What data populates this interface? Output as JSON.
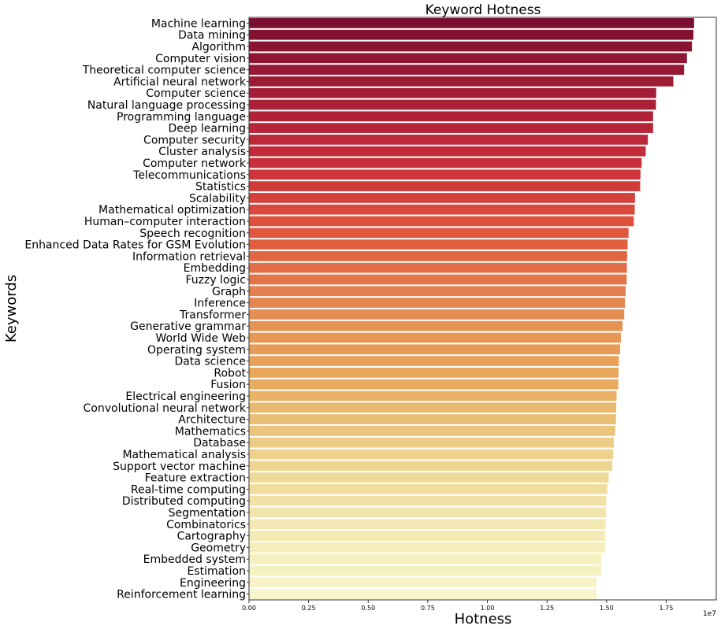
{
  "chart_data": {
    "type": "bar",
    "orientation": "horizontal",
    "title": "Keyword Hotness",
    "xlabel": "Hotness",
    "ylabel": "Keywords",
    "x_scale_label": "1e7",
    "xlim": [
      0,
      1.96
    ],
    "x_multiplier": 10000000,
    "xticks": [
      "0.00",
      "0.25",
      "0.50",
      "0.75",
      "1.00",
      "1.25",
      "1.50",
      "1.75"
    ],
    "grid": false,
    "palette": [
      "#7a1030",
      "#a51d36",
      "#c9303a",
      "#e05a3e",
      "#e48a52",
      "#e8a95c",
      "#edd08a",
      "#f3e8b0",
      "#f8f5cc"
    ],
    "categories": [
      "Machine learning",
      "Data mining",
      "Algorithm",
      "Computer vision",
      "Theoretical computer science",
      "Artificial neural network",
      "Computer science",
      "Natural language processing",
      "Programming language",
      "Deep learning",
      "Computer security",
      "Cluster analysis",
      "Computer network",
      "Telecommunications",
      "Statistics",
      "Scalability",
      "Mathematical optimization",
      "Human–computer interaction",
      "Speech recognition",
      "Enhanced Data Rates for GSM Evolution",
      "Information retrieval",
      "Embedding",
      "Fuzzy logic",
      "Graph",
      "Inference",
      "Transformer",
      "Generative grammar",
      "World Wide Web",
      "Operating system",
      "Data science",
      "Robot",
      "Fusion",
      "Electrical engineering",
      "Convolutional neural network",
      "Architecture",
      "Mathematics",
      "Database",
      "Mathematical analysis",
      "Support vector machine",
      "Feature extraction",
      "Real-time computing",
      "Distributed computing",
      "Segmentation",
      "Combinatorics",
      "Cartography",
      "Geometry",
      "Embedded system",
      "Estimation",
      "Engineering",
      "Reinforcement learning"
    ],
    "values": [
      1.867,
      1.864,
      1.858,
      1.837,
      1.825,
      1.78,
      1.708,
      1.707,
      1.695,
      1.695,
      1.673,
      1.664,
      1.647,
      1.642,
      1.641,
      1.619,
      1.618,
      1.614,
      1.592,
      1.588,
      1.586,
      1.585,
      1.584,
      1.58,
      1.577,
      1.574,
      1.567,
      1.56,
      1.557,
      1.551,
      1.55,
      1.549,
      1.542,
      1.54,
      1.539,
      1.536,
      1.53,
      1.528,
      1.524,
      1.509,
      1.503,
      1.499,
      1.498,
      1.496,
      1.494,
      1.493,
      1.478,
      1.477,
      1.458,
      1.458
    ]
  }
}
